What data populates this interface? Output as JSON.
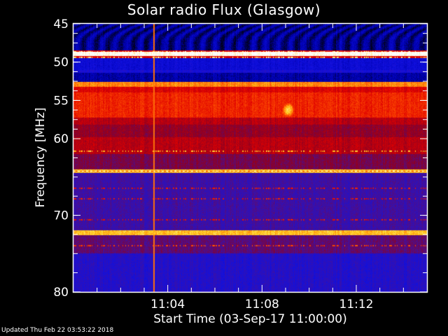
{
  "chart_data": {
    "type": "heatmap",
    "title": "Solar radio Flux (Glasgow)",
    "xlabel": "Start Time (03-Sep-17 11:00:00)",
    "ylabel": "Frequency [MHz]",
    "x_range_minutes_after_11_00": [
      0,
      15
    ],
    "xlim": [
      "11:00",
      "11:15"
    ],
    "ylim": [
      45,
      80
    ],
    "y_inverted": true,
    "x_ticks": [
      {
        "label": "11:04",
        "minute": 4
      },
      {
        "label": "11:08",
        "minute": 8
      },
      {
        "label": "11:12",
        "minute": 12
      }
    ],
    "y_ticks": [
      45,
      50,
      55,
      60,
      70,
      80
    ],
    "colormap": [
      "#000018",
      "#0000b0",
      "#1010e0",
      "#4010a0",
      "#900020",
      "#e00000",
      "#ff5000",
      "#ffd020",
      "#ffffff"
    ],
    "frequency_bands": [
      {
        "from": 45.0,
        "to": 48.5,
        "level": 0.1
      },
      {
        "from": 48.5,
        "to": 48.7,
        "level": 0.62
      },
      {
        "from": 48.7,
        "to": 49.2,
        "level": 1.0
      },
      {
        "from": 49.2,
        "to": 49.5,
        "level": 0.62
      },
      {
        "from": 49.5,
        "to": 51.0,
        "level": 0.22
      },
      {
        "from": 51.0,
        "to": 51.4,
        "level": 0.27
      },
      {
        "from": 51.4,
        "to": 52.6,
        "level": 0.12
      },
      {
        "from": 52.6,
        "to": 53.2,
        "level": 0.8
      },
      {
        "from": 53.2,
        "to": 54.0,
        "level": 0.62
      },
      {
        "from": 54.0,
        "to": 57.2,
        "level": 0.68
      },
      {
        "from": 57.2,
        "to": 58.2,
        "level": 0.56
      },
      {
        "from": 58.2,
        "to": 59.8,
        "level": 0.5
      },
      {
        "from": 59.8,
        "to": 62.0,
        "level": 0.56
      },
      {
        "from": 62.0,
        "to": 64.0,
        "level": 0.46
      },
      {
        "from": 64.0,
        "to": 64.5,
        "level": 0.86
      },
      {
        "from": 64.5,
        "to": 72.0,
        "level": 0.36
      },
      {
        "from": 72.0,
        "to": 72.6,
        "level": 0.86
      },
      {
        "from": 72.6,
        "to": 75.0,
        "level": 0.42
      },
      {
        "from": 75.0,
        "to": 80.0,
        "level": 0.3
      }
    ],
    "intermittent_rows_mhz": [
      48.6,
      49.3,
      61.5,
      66.4,
      67.8,
      70.5,
      73.9
    ],
    "events": [
      {
        "type": "broadband-spike",
        "time": "11:03:23",
        "from_mhz": 45,
        "to_mhz": 80
      },
      {
        "type": "burst",
        "time": "11:09:06",
        "frequency_mhz": 56.2
      }
    ]
  },
  "footer": {
    "updated": "Updated Thu Feb 22 03:53:22 2018"
  }
}
